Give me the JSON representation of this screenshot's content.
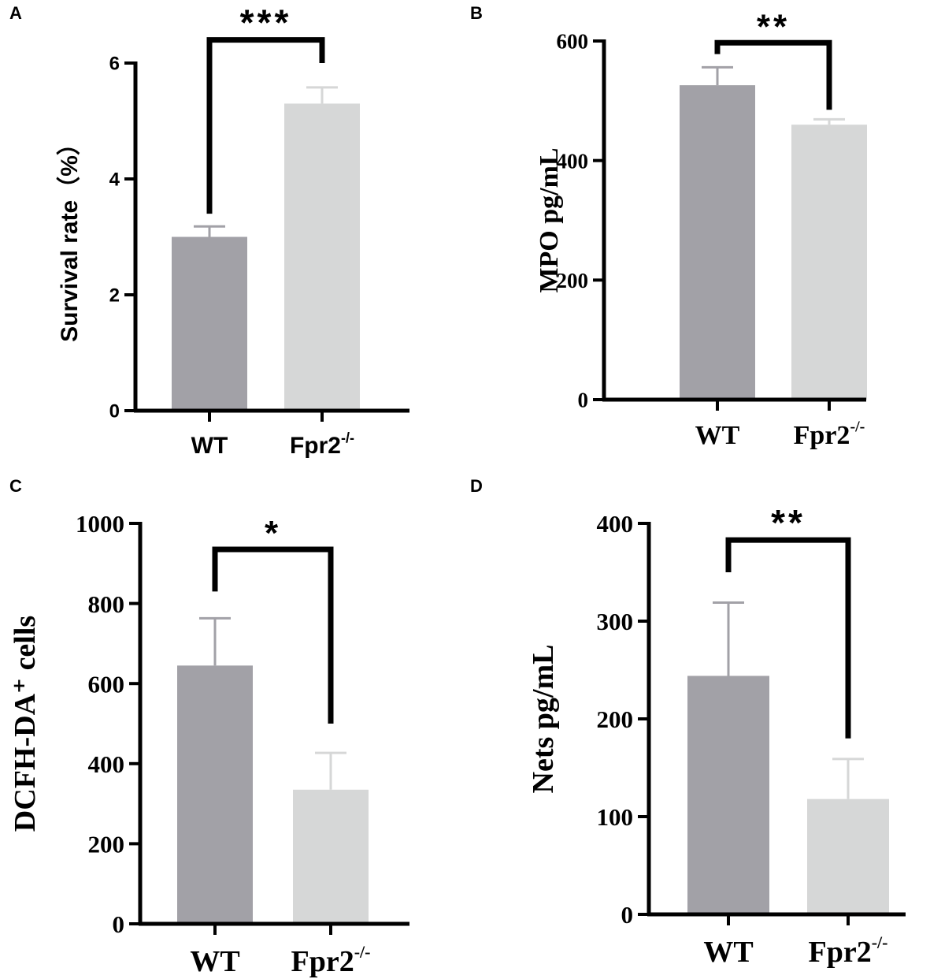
{
  "figure": {
    "panels": [
      "A",
      "B",
      "C",
      "D"
    ]
  },
  "chart_data": [
    {
      "panel": "A",
      "type": "bar",
      "font": "sans",
      "title": "",
      "xlabel": "",
      "ylabel": "Survival rate（%）",
      "ylim": [
        0,
        6
      ],
      "yticks": [
        0,
        2,
        4,
        6
      ],
      "categories": [
        {
          "main": "WT",
          "sup": ""
        },
        {
          "main": "Fpr2",
          "sup": "-/-"
        }
      ],
      "values": [
        3.0,
        5.3
      ],
      "errors": [
        0.18,
        0.28
      ],
      "colors": [
        "#a2a1a7",
        "#d6d7d7"
      ],
      "significance": {
        "label": "***",
        "left_start": 3.4,
        "right_start": 6.0,
        "top": 6.4
      }
    },
    {
      "panel": "B",
      "type": "bar",
      "font": "serif",
      "title": "",
      "xlabel": "",
      "ylabel": "MPO pg/mL",
      "ylim": [
        0,
        600
      ],
      "yticks": [
        0,
        200,
        400,
        600
      ],
      "categories": [
        {
          "main": "WT",
          "sup": ""
        },
        {
          "main": "Fpr2",
          "sup": "-/-"
        }
      ],
      "values": [
        526,
        460
      ],
      "errors": [
        30,
        9
      ],
      "colors": [
        "#a2a1a7",
        "#d6d7d7"
      ],
      "significance": {
        "label": "**",
        "left_start": 578,
        "right_start": 485,
        "top": 597
      }
    },
    {
      "panel": "C",
      "type": "bar",
      "font": "serif",
      "title": "",
      "xlabel": "",
      "ylabel": "DCFH-DA⁺ cells",
      "ylim": [
        0,
        1000
      ],
      "yticks": [
        0,
        200,
        400,
        600,
        800,
        1000
      ],
      "categories": [
        {
          "main": "WT",
          "sup": ""
        },
        {
          "main": "Fpr2",
          "sup": "-/-"
        }
      ],
      "values": [
        645,
        335
      ],
      "errors": [
        118,
        92
      ],
      "colors": [
        "#a2a1a7",
        "#d6d7d7"
      ],
      "significance": {
        "label": "*",
        "left_start": 830,
        "right_start": 500,
        "top": 935
      }
    },
    {
      "panel": "D",
      "type": "bar",
      "font": "serif",
      "title": "",
      "xlabel": "",
      "ylabel": "Nets pg/mL",
      "ylim": [
        0,
        400
      ],
      "yticks": [
        0,
        100,
        200,
        300,
        400
      ],
      "categories": [
        {
          "main": "WT",
          "sup": ""
        },
        {
          "main": "Fpr2",
          "sup": "-/-"
        }
      ],
      "values": [
        244,
        118
      ],
      "errors": [
        75,
        41
      ],
      "colors": [
        "#a2a1a7",
        "#d6d7d7"
      ],
      "significance": {
        "label": "**",
        "left_start": 350,
        "right_start": 180,
        "top": 383
      }
    }
  ]
}
